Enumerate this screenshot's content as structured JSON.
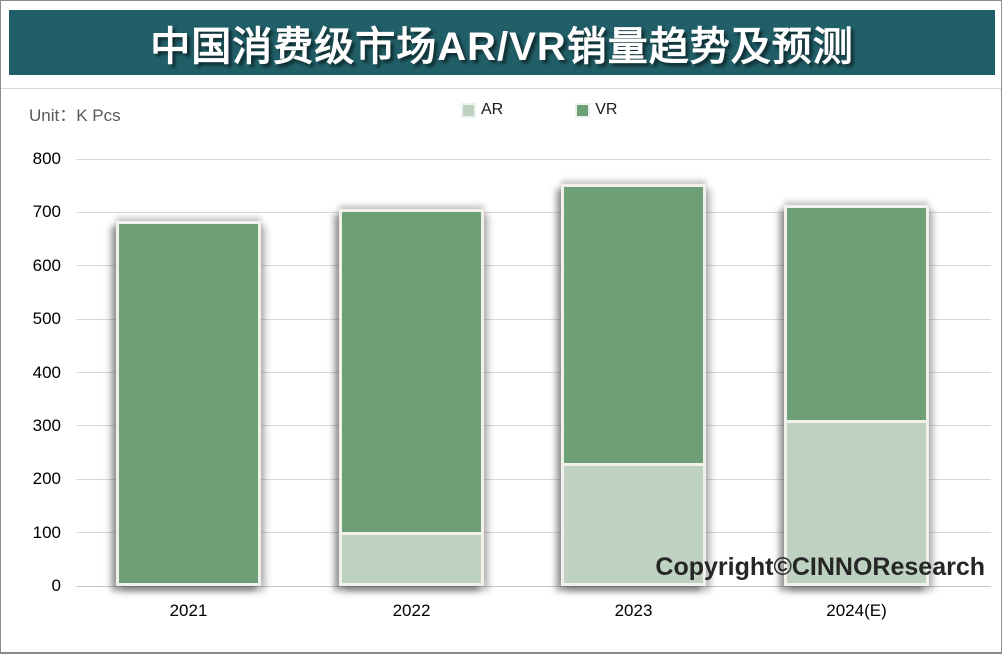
{
  "page": {
    "title": "中国消费级市场AR/VR销量趋势及预测",
    "unit_label": "Unit：K Pcs",
    "copyright": "Copyright©CINNOResearch"
  },
  "colors": {
    "banner_background": "#215f68",
    "title_text": "#ffffff",
    "ar_fill": "#bfd2c1",
    "vr_fill": "#6da077",
    "bar_border": "#f1f0ea",
    "gridline": "#d9d9d9",
    "unit_text": "#595959",
    "axis_text": "#000000",
    "copyright_text": "#262626"
  },
  "chart_data": {
    "type": "bar",
    "stacked": true,
    "title": "中国消费级市场AR/VR销量趋势及预测",
    "unit": "K Pcs",
    "categories": [
      "2021",
      "2022",
      "2023",
      "2024(E)"
    ],
    "series": [
      {
        "name": "AR",
        "color": "#bfd2c1",
        "values": [
          0,
          95,
          225,
          305
        ]
      },
      {
        "name": "VR",
        "color": "#6da077",
        "values": [
          683,
          612,
          528,
          408
        ]
      }
    ],
    "totals": [
      683,
      707,
      753,
      713
    ],
    "xlabel": "",
    "ylabel": "K Pcs",
    "ylim": [
      0,
      800
    ],
    "ytick_step": 100,
    "grid": true,
    "legend_position": "top-center",
    "annotations": [
      "Copyright©CINNOResearch"
    ]
  }
}
